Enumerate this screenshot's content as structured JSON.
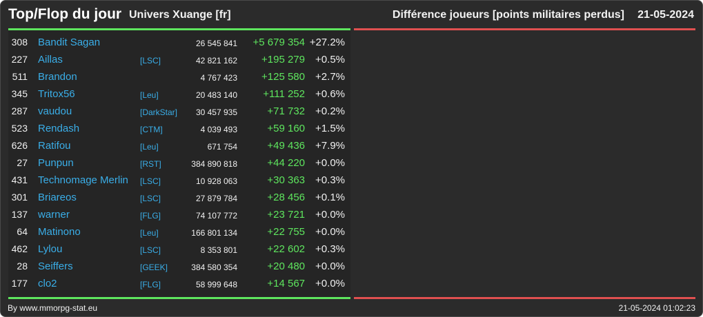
{
  "header": {
    "title": "Top/Flop du jour",
    "server": "Univers Xuange [fr]",
    "metric": "Différence joueurs [points militaires perdus]",
    "date": "21-05-2024"
  },
  "colors": {
    "background": "#2b2b2b",
    "top_accent": "#5ee65e",
    "flop_accent": "#e05050",
    "link": "#3aaee8",
    "positive": "#5ee65e"
  },
  "top_rows": [
    {
      "rank": "308",
      "name": "Bandit Sagan",
      "alliance": "",
      "points": "26 545 841",
      "diff": "+5 679 354",
      "pct": "+27.2%"
    },
    {
      "rank": "227",
      "name": "Aillas",
      "alliance": "[LSC]",
      "points": "42 821 162",
      "diff": "+195 279",
      "pct": "+0.5%"
    },
    {
      "rank": "511",
      "name": "Brandon",
      "alliance": "",
      "points": "4 767 423",
      "diff": "+125 580",
      "pct": "+2.7%"
    },
    {
      "rank": "345",
      "name": "Tritox56",
      "alliance": "[Leu]",
      "points": "20 483 140",
      "diff": "+111 252",
      "pct": "+0.6%"
    },
    {
      "rank": "287",
      "name": "vaudou",
      "alliance": "[DarkStar]",
      "points": "30 457 935",
      "diff": "+71 732",
      "pct": "+0.2%"
    },
    {
      "rank": "523",
      "name": "Rendash",
      "alliance": "[CTM]",
      "points": "4 039 493",
      "diff": "+59 160",
      "pct": "+1.5%"
    },
    {
      "rank": "626",
      "name": "Ratifou",
      "alliance": "[Leu]",
      "points": "671 754",
      "diff": "+49 436",
      "pct": "+7.9%"
    },
    {
      "rank": "27",
      "name": "Punpun",
      "alliance": "[RST]",
      "points": "384 890 818",
      "diff": "+44 220",
      "pct": "+0.0%"
    },
    {
      "rank": "431",
      "name": "Technomage Merlin",
      "alliance": "[LSC]",
      "points": "10 928 063",
      "diff": "+30 363",
      "pct": "+0.3%"
    },
    {
      "rank": "301",
      "name": "Briareos",
      "alliance": "[LSC]",
      "points": "27 879 784",
      "diff": "+28 456",
      "pct": "+0.1%"
    },
    {
      "rank": "137",
      "name": "warner",
      "alliance": "[FLG]",
      "points": "74 107 772",
      "diff": "+23 721",
      "pct": "+0.0%"
    },
    {
      "rank": "64",
      "name": "Matinono",
      "alliance": "[Leu]",
      "points": "166 801 134",
      "diff": "+22 755",
      "pct": "+0.0%"
    },
    {
      "rank": "462",
      "name": "Lylou",
      "alliance": "[LSC]",
      "points": "8 353 801",
      "diff": "+22 602",
      "pct": "+0.3%"
    },
    {
      "rank": "28",
      "name": "Seiffers",
      "alliance": "[GEEK]",
      "points": "384 580 354",
      "diff": "+20 480",
      "pct": "+0.0%"
    },
    {
      "rank": "177",
      "name": "clo2",
      "alliance": "[FLG]",
      "points": "58 999 648",
      "diff": "+14 567",
      "pct": "+0.0%"
    }
  ],
  "footer": {
    "credit": "By www.mmorpg-stat.eu",
    "timestamp": "21-05-2024 01:02:23"
  }
}
